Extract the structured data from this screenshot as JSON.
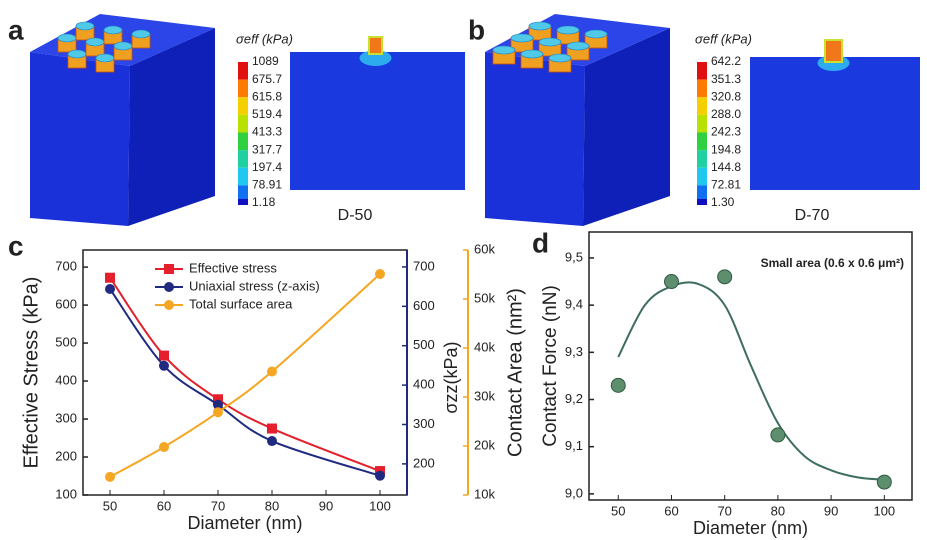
{
  "panel_labels": [
    "a",
    "b",
    "c",
    "d"
  ],
  "simulations": [
    {
      "legend_title": "σeff (kPa)",
      "legend_labels": [
        "1089",
        "675.7",
        "615.8",
        "519.4",
        "413.3",
        "317.7",
        "197.4",
        "78.91",
        "1.18"
      ],
      "caption": "D-50"
    },
    {
      "legend_title": "σeff (kPa)",
      "legend_labels": [
        "642.2",
        "351.3",
        "320.8",
        "288.0",
        "242.3",
        "194.8",
        "144.8",
        "72.81",
        "1.30"
      ],
      "caption": "D-70"
    }
  ],
  "chart_data": [
    {
      "type": "line",
      "x_label": "Diameter (nm)",
      "y_label": "Effective Stress (kPa)",
      "y2_label": "σzz(kPa)",
      "y3_label": "Contact Area (nm²)",
      "x": [
        50,
        60,
        70,
        80,
        100
      ],
      "xlim": [
        45,
        105
      ],
      "xticks": [
        50,
        60,
        70,
        80,
        90,
        100
      ],
      "ylim": [
        100,
        745
      ],
      "yticks": [
        100,
        200,
        300,
        400,
        500,
        600,
        700
      ],
      "y2lim": [
        121,
        743
      ],
      "y2ticks": [
        200,
        300,
        400,
        500,
        600,
        700
      ],
      "y3lim": [
        10000,
        60000
      ],
      "y3ticks": [
        {
          "value": 10000,
          "label": "10k"
        },
        {
          "value": 20000,
          "label": "20k"
        },
        {
          "value": 30000,
          "label": "30k"
        },
        {
          "value": 40000,
          "label": "40k"
        },
        {
          "value": 50000,
          "label": "50k"
        },
        {
          "value": 60000,
          "label": "60k"
        }
      ],
      "legend": "upper center",
      "series": [
        {
          "name": "Effective stress",
          "color": "#e3202b",
          "marker": "square",
          "values": [
            672,
            467,
            352,
            275,
            163
          ]
        },
        {
          "name": "Uniaxial stress (z-axis)",
          "color": "#1f2a80",
          "marker": "circle",
          "axis": "y2",
          "values": [
            644,
            449,
            350,
            258,
            170
          ]
        },
        {
          "name": "Total surface area",
          "color": "#f5a623",
          "marker": "circle",
          "axis": "y3",
          "values": [
            13700,
            19800,
            26900,
            35200,
            55100
          ]
        }
      ]
    },
    {
      "type": "scatter",
      "x_label": "Diameter (nm)",
      "y_label": "Contact Force (nN)",
      "annotation": "Small area (0.6 x 0.6 μm²)",
      "x": [
        50,
        60,
        70,
        80,
        100
      ],
      "xlim": [
        44.5,
        105.2
      ],
      "xticks": [
        50,
        60,
        70,
        80,
        90,
        100
      ],
      "ylim": [
        8.987,
        9.555
      ],
      "yticks": [
        {
          "value": 9.0,
          "label": "9,0"
        },
        {
          "value": 9.1,
          "label": "9,1"
        },
        {
          "value": 9.2,
          "label": "9,2"
        },
        {
          "value": 9.3,
          "label": "9,3"
        },
        {
          "value": 9.4,
          "label": "9,4"
        },
        {
          "value": 9.5,
          "label": "9,5"
        }
      ],
      "series": [
        {
          "color": "#5d8f6e",
          "values": [
            9.23,
            9.45,
            9.46,
            9.125,
            9.025
          ]
        }
      ],
      "fit": {
        "color": "#3f6e5e",
        "x": [
          50,
          55,
          60,
          65,
          70,
          75,
          80,
          85,
          90,
          95,
          100
        ],
        "values": [
          9.29,
          9.4,
          9.44,
          9.445,
          9.4,
          9.27,
          9.15,
          9.08,
          9.05,
          9.035,
          9.03
        ]
      }
    }
  ]
}
